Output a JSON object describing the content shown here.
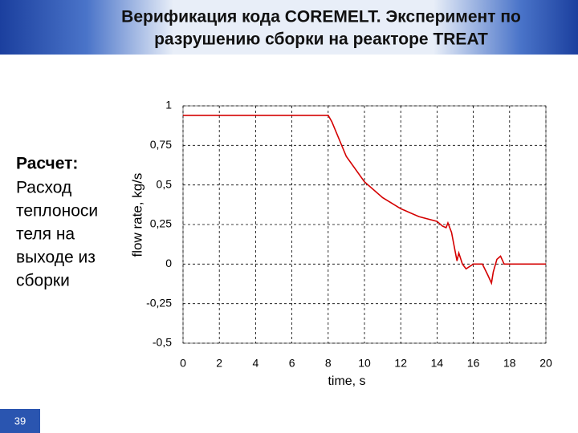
{
  "slide": {
    "title": [
      "Верификация кода COREMELT. Эксперимент по",
      "разрушению сборки на реакторе  TREAT"
    ],
    "body_label": "Расчет:",
    "body_text": [
      "Расход",
      "теплоноси",
      "теля на",
      "выходе из",
      "сборки"
    ],
    "page_number": "39"
  },
  "chart_data": {
    "type": "line",
    "x": [
      0,
      8,
      8.2,
      9,
      10,
      11,
      12,
      13,
      14,
      14.3,
      14.5,
      14.6,
      14.8,
      15,
      15.1,
      15.2,
      15.4,
      15.6,
      16,
      16.5,
      16.8,
      17,
      17.1,
      17.3,
      17.5,
      17.7,
      18,
      20
    ],
    "values": [
      0.94,
      0.94,
      0.9,
      0.68,
      0.52,
      0.42,
      0.35,
      0.3,
      0.27,
      0.24,
      0.23,
      0.26,
      0.2,
      0.08,
      0.02,
      0.07,
      0.0,
      -0.03,
      0.0,
      0.0,
      -0.07,
      -0.12,
      -0.05,
      0.03,
      0.05,
      0.0,
      0.0,
      0.0
    ],
    "color": "#d40000",
    "xlabel": "time, s",
    "ylabel": "flow rate, kg/s",
    "xlim": [
      0,
      20
    ],
    "xticks": [
      0,
      2,
      4,
      6,
      8,
      10,
      12,
      14,
      16,
      18,
      20
    ],
    "ylim": [
      -0.5,
      1
    ],
    "yticks": [
      {
        "value": -0.5,
        "label": "-0,5"
      },
      {
        "value": -0.25,
        "label": "-0,25"
      },
      0,
      {
        "value": 0.25,
        "label": "0,25"
      },
      {
        "value": 0.5,
        "label": "0,5"
      },
      {
        "value": 0.75,
        "label": "0,75"
      },
      1
    ],
    "grid": true
  }
}
